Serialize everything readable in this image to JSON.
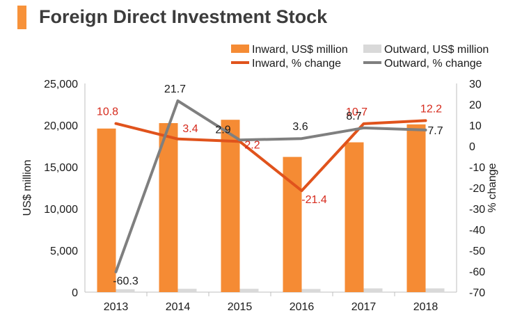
{
  "header": {
    "title": "Foreign Direct Investment Stock",
    "accent_color": "#f7923a"
  },
  "chart_data": {
    "type": "bar",
    "title": "Foreign Direct Investment Stock",
    "categories": [
      "2013",
      "2014",
      "2015",
      "2016",
      "2017",
      "2018"
    ],
    "series": [
      {
        "name": "Inward, US$ million",
        "kind": "bar",
        "axis": "left",
        "color": "#f58b34",
        "values": [
          19600,
          20250,
          20650,
          16200,
          17950,
          20100
        ]
      },
      {
        "name": "Outward, US$ million",
        "kind": "bar",
        "axis": "left",
        "color": "#d9d9d9",
        "values": [
          350,
          400,
          400,
          380,
          450,
          450
        ]
      },
      {
        "name": "Inward, % change",
        "kind": "line",
        "axis": "right",
        "color": "#e0531c",
        "label_color": "#d62a1c",
        "values": [
          10.8,
          3.4,
          2.2,
          -21.4,
          10.7,
          12.2
        ],
        "labels": [
          "10.8",
          "3.4",
          "2.2",
          "-21.4",
          "10.7",
          "12.2"
        ]
      },
      {
        "name": "Outward, % change",
        "kind": "line",
        "axis": "right",
        "color": "#7f7f7f",
        "label_color": "#1a1a1a",
        "values": [
          -60.3,
          21.7,
          2.9,
          3.6,
          8.7,
          7.7
        ],
        "labels": [
          "-60.3",
          "21.7",
          "2.9",
          "3.6",
          "8.7",
          "7.7"
        ]
      }
    ],
    "ylabel": "US$ million",
    "ylim": [
      0,
      25000
    ],
    "yticks": [
      "0",
      "5,000",
      "10,000",
      "15,000",
      "20,000",
      "25,000"
    ],
    "y2label": "% change",
    "y2lim": [
      -70,
      30
    ],
    "y2ticks": [
      "-70",
      "-60",
      "-50",
      "-40",
      "-30",
      "-20",
      "-10",
      "0",
      "10",
      "20",
      "30"
    ],
    "grid": false,
    "legend_position": "top-right"
  }
}
